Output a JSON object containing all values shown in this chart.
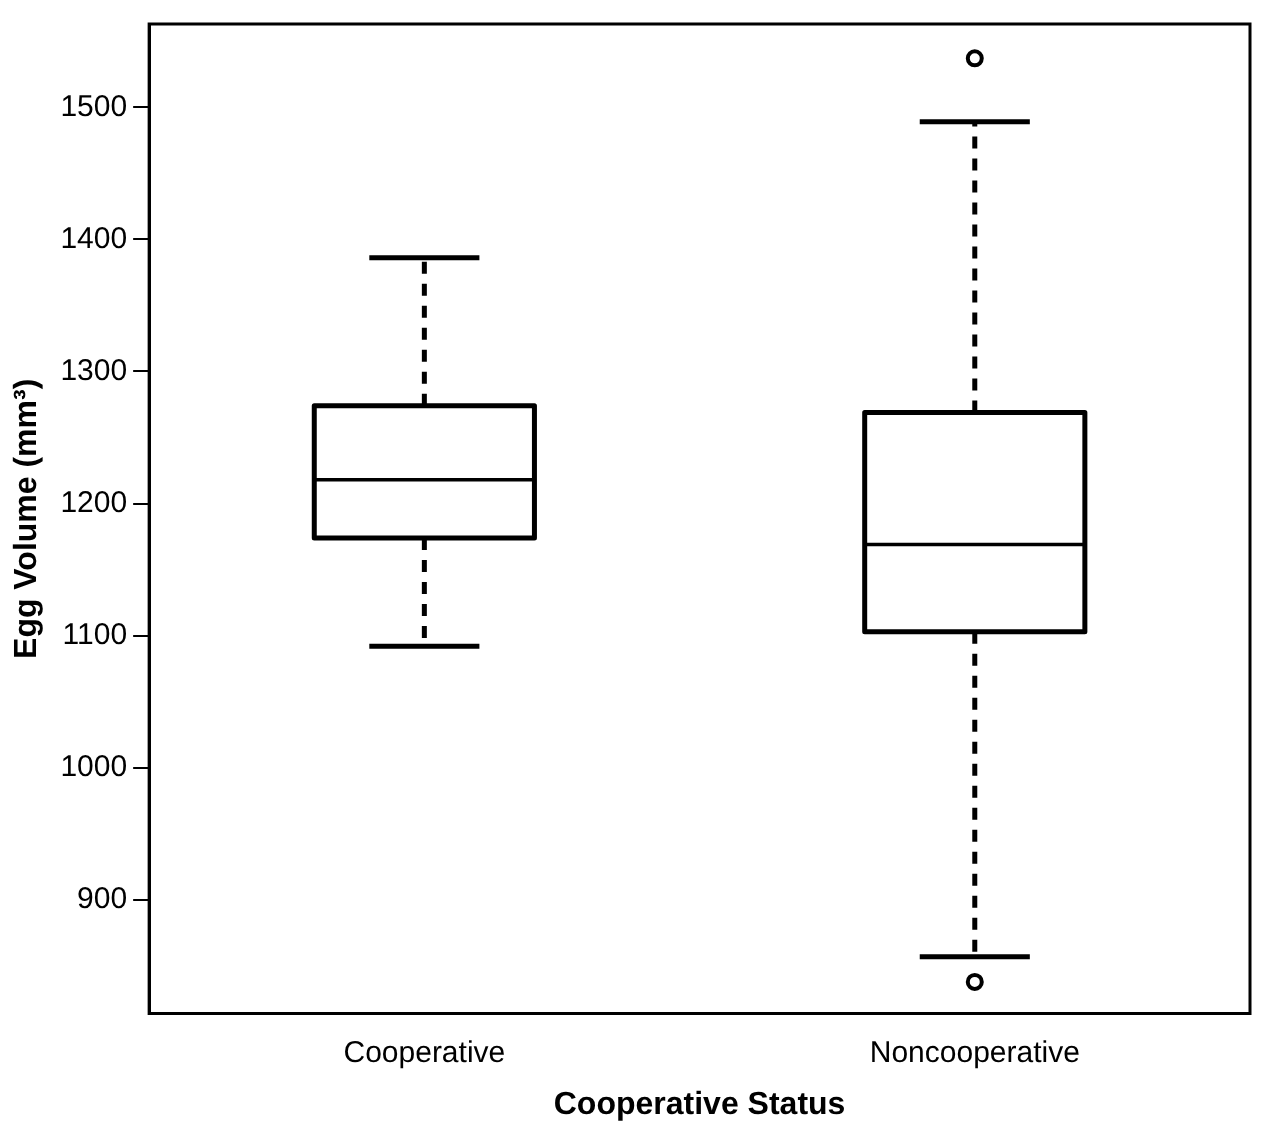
{
  "chart_data": {
    "type": "box",
    "xlabel": "Cooperative Status",
    "ylabel": "Egg Volume (mm³)",
    "categories": [
      "Cooperative",
      "Noncooperative"
    ],
    "boxes": [
      {
        "low": 1092,
        "q1": 1174,
        "median": 1218,
        "q3": 1274,
        "high": 1386
      },
      {
        "low": 857,
        "q1": 1103,
        "median": 1169,
        "q3": 1269,
        "high": 1489,
        "outliers": [
          1537,
          838
        ]
      }
    ],
    "color": "#000000",
    "ylim": [
      814,
      1563
    ],
    "yticks": [
      900,
      1000,
      1100,
      1200,
      1300,
      1400,
      1500
    ],
    "grid": false,
    "legend": false
  }
}
